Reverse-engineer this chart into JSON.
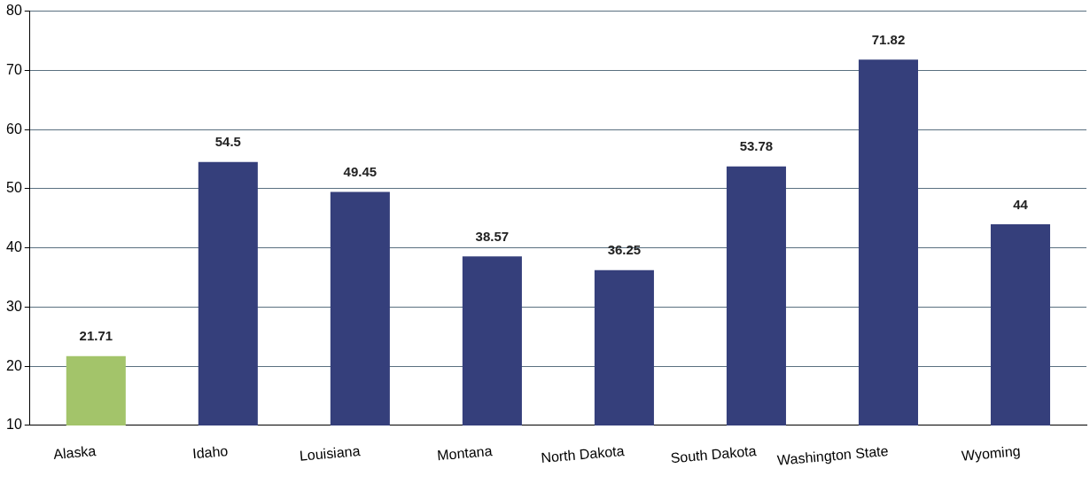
{
  "chart_data": {
    "type": "bar",
    "categories": [
      "Alaska",
      "Idaho",
      "Louisiana",
      "Montana",
      "North Dakota",
      "South Dakota",
      "Washington State",
      "Wyoming"
    ],
    "values": [
      21.71,
      54.5,
      49.45,
      38.57,
      36.25,
      53.78,
      71.82,
      44
    ],
    "colors": [
      "#a3c46a",
      "#353f7b",
      "#353f7b",
      "#353f7b",
      "#353f7b",
      "#353f7b",
      "#353f7b",
      "#353f7b"
    ],
    "ylim": [
      10,
      80
    ],
    "yticks": [
      10,
      20,
      30,
      40,
      50,
      60,
      70,
      80
    ],
    "grid": "y",
    "data_labels": true,
    "legend": false
  }
}
